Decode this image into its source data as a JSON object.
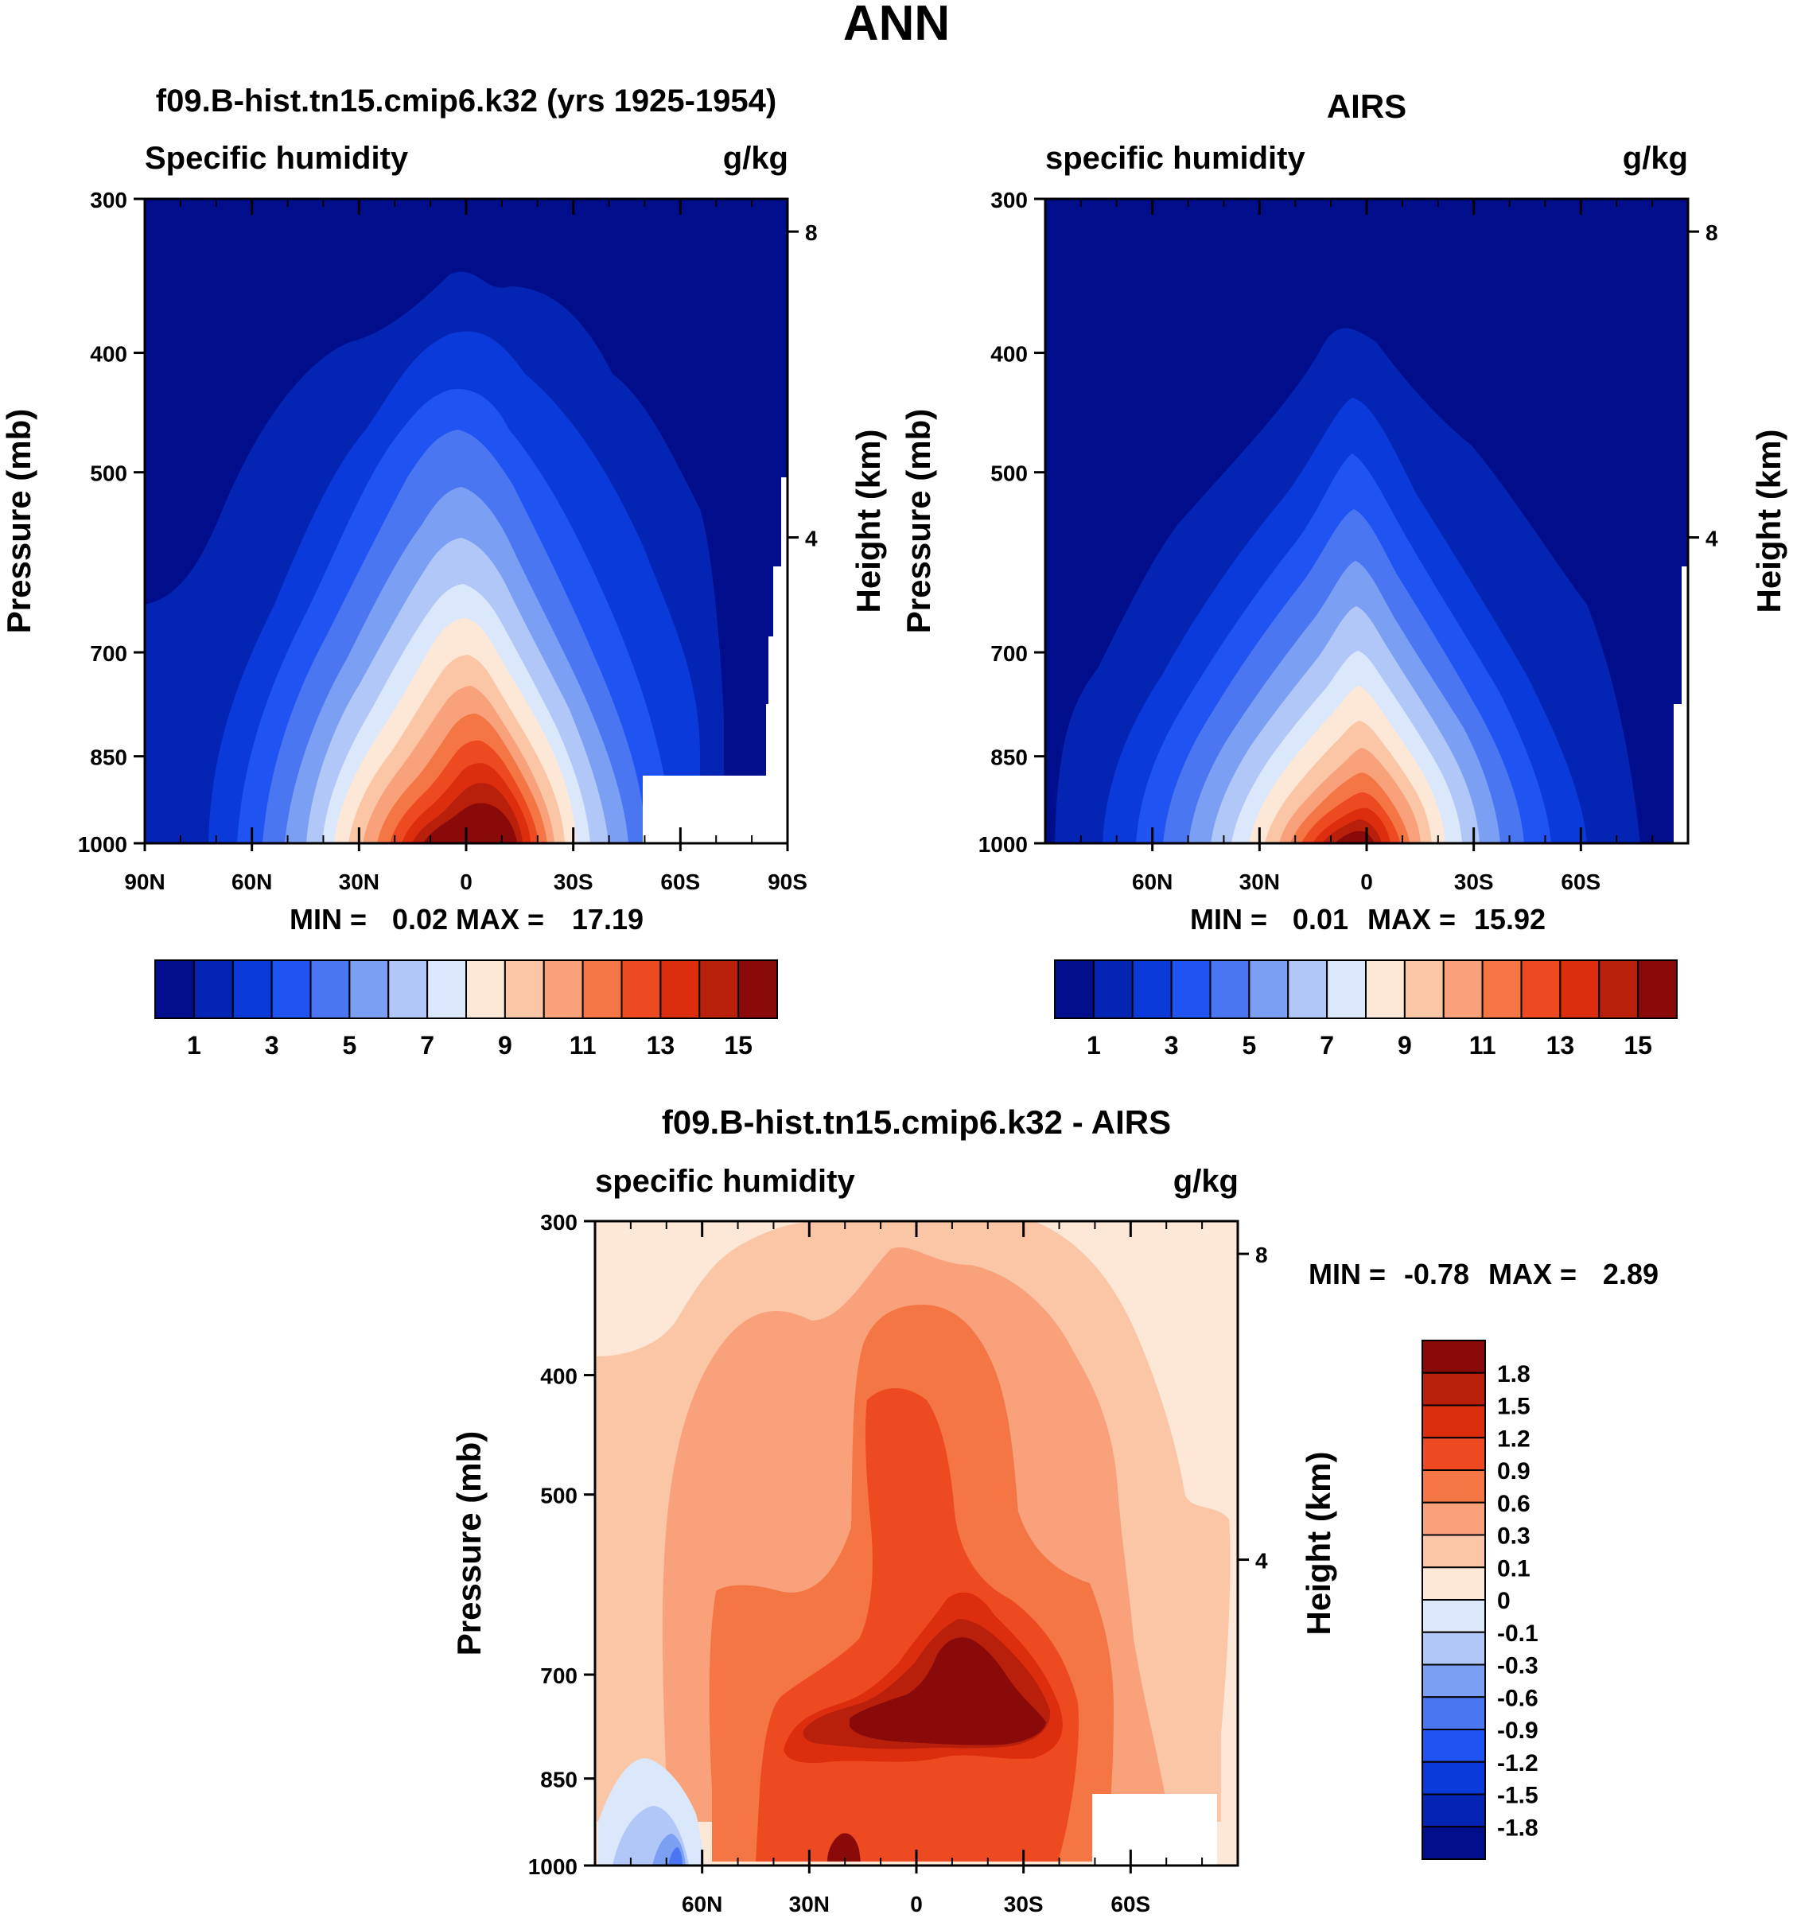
{
  "figure_title": "ANN",
  "chart_data": [
    {
      "type": "contour",
      "title": "f09.B-hist.tn15.cmip6.k32 (yrs 1925-1954)",
      "subtitle_left": "Specific humidity",
      "subtitle_right": "g/kg",
      "ylabel": "Pressure (mb)",
      "ylabel_right": "Height (km)",
      "y_ticks": [
        "300",
        "400",
        "500",
        "700",
        "850",
        "1000"
      ],
      "y_tick_values": [
        300,
        400,
        500,
        700,
        850,
        1000
      ],
      "y_right_ticks": [
        "8",
        "4"
      ],
      "y_right_tick_values": [
        8,
        4
      ],
      "x_ticks": [
        "90N",
        "60N",
        "30N",
        "0",
        "30S",
        "60S",
        "90S"
      ],
      "x_tick_values": [
        90,
        60,
        30,
        0,
        -30,
        -60,
        -90
      ],
      "xlim": [
        90,
        -90
      ],
      "ylim": [
        300,
        1000
      ],
      "min_label": "MIN =",
      "min_value": "0.02",
      "max_label": "MAX =",
      "max_value": "17.19",
      "colorbar_colors": [
        "#000e8c",
        "#0425b3",
        "#0a3ad9",
        "#1f53f2",
        "#4a76f2",
        "#7b9ff2",
        "#b0c7f7",
        "#dbe7fa",
        "#fde8d8",
        "#fbc6a6",
        "#f8a17b",
        "#f47644",
        "#ee4a22",
        "#dc2d0e",
        "#b8200b",
        "#8a0a0a"
      ],
      "colorbar_labels": [
        "1",
        "3",
        "5",
        "7",
        "9",
        "11",
        "13",
        "15"
      ]
    },
    {
      "type": "contour",
      "title": "AIRS",
      "subtitle_left": "specific humidity",
      "subtitle_right": "g/kg",
      "ylabel": "Pressure (mb)",
      "ylabel_right": "Height (km)",
      "y_ticks": [
        "300",
        "400",
        "500",
        "700",
        "850",
        "1000"
      ],
      "y_tick_values": [
        300,
        400,
        500,
        700,
        850,
        1000
      ],
      "y_right_ticks": [
        "8",
        "4"
      ],
      "y_right_tick_values": [
        8,
        4
      ],
      "x_ticks": [
        "60N",
        "30N",
        "0",
        "30S",
        "60S"
      ],
      "x_tick_values": [
        60,
        30,
        0,
        -30,
        -60
      ],
      "xlim": [
        90,
        -90
      ],
      "ylim": [
        300,
        1000
      ],
      "min_label": "MIN =",
      "min_value": "0.01",
      "max_label": "MAX =",
      "max_value": "15.92",
      "colorbar_colors": [
        "#000e8c",
        "#0425b3",
        "#0a3ad9",
        "#1f53f2",
        "#4a76f2",
        "#7b9ff2",
        "#b0c7f7",
        "#dbe7fa",
        "#fde8d8",
        "#fbc6a6",
        "#f8a17b",
        "#f47644",
        "#ee4a22",
        "#dc2d0e",
        "#b8200b",
        "#8a0a0a"
      ],
      "colorbar_labels": [
        "1",
        "3",
        "5",
        "7",
        "9",
        "11",
        "13",
        "15"
      ]
    },
    {
      "type": "contour",
      "title": "f09.B-hist.tn15.cmip6.k32 - AIRS",
      "subtitle_left": "specific humidity",
      "subtitle_right": "g/kg",
      "ylabel": "Pressure (mb)",
      "ylabel_right": "Height (km)",
      "y_ticks": [
        "300",
        "400",
        "500",
        "700",
        "850",
        "1000"
      ],
      "y_tick_values": [
        300,
        400,
        500,
        700,
        850,
        1000
      ],
      "y_right_ticks": [
        "8",
        "4"
      ],
      "y_right_tick_values": [
        8,
        4
      ],
      "x_ticks": [
        "60N",
        "30N",
        "0",
        "30S",
        "60S"
      ],
      "x_tick_values": [
        60,
        30,
        0,
        -30,
        -60
      ],
      "xlim": [
        90,
        -90
      ],
      "ylim": [
        300,
        1000
      ],
      "min_label": "MIN =",
      "min_value": "-0.78",
      "max_label": "MAX =",
      "max_value": "2.89",
      "colorbar_colors": [
        "#8a0a0a",
        "#b8200b",
        "#dc2d0e",
        "#ee4a22",
        "#f47644",
        "#f8a17b",
        "#fbc6a6",
        "#fde8d8",
        "#dbe7fa",
        "#b0c7f7",
        "#7b9ff2",
        "#4a76f2",
        "#1f53f2",
        "#0a3ad9",
        "#0425b3",
        "#000e8c"
      ],
      "colorbar_labels": [
        "1.8",
        "1.5",
        "1.2",
        "0.9",
        "0.6",
        "0.3",
        "0.1",
        "0",
        "-0.1",
        "-0.3",
        "-0.6",
        "-0.9",
        "-1.2",
        "-1.5",
        "-1.8"
      ]
    }
  ]
}
